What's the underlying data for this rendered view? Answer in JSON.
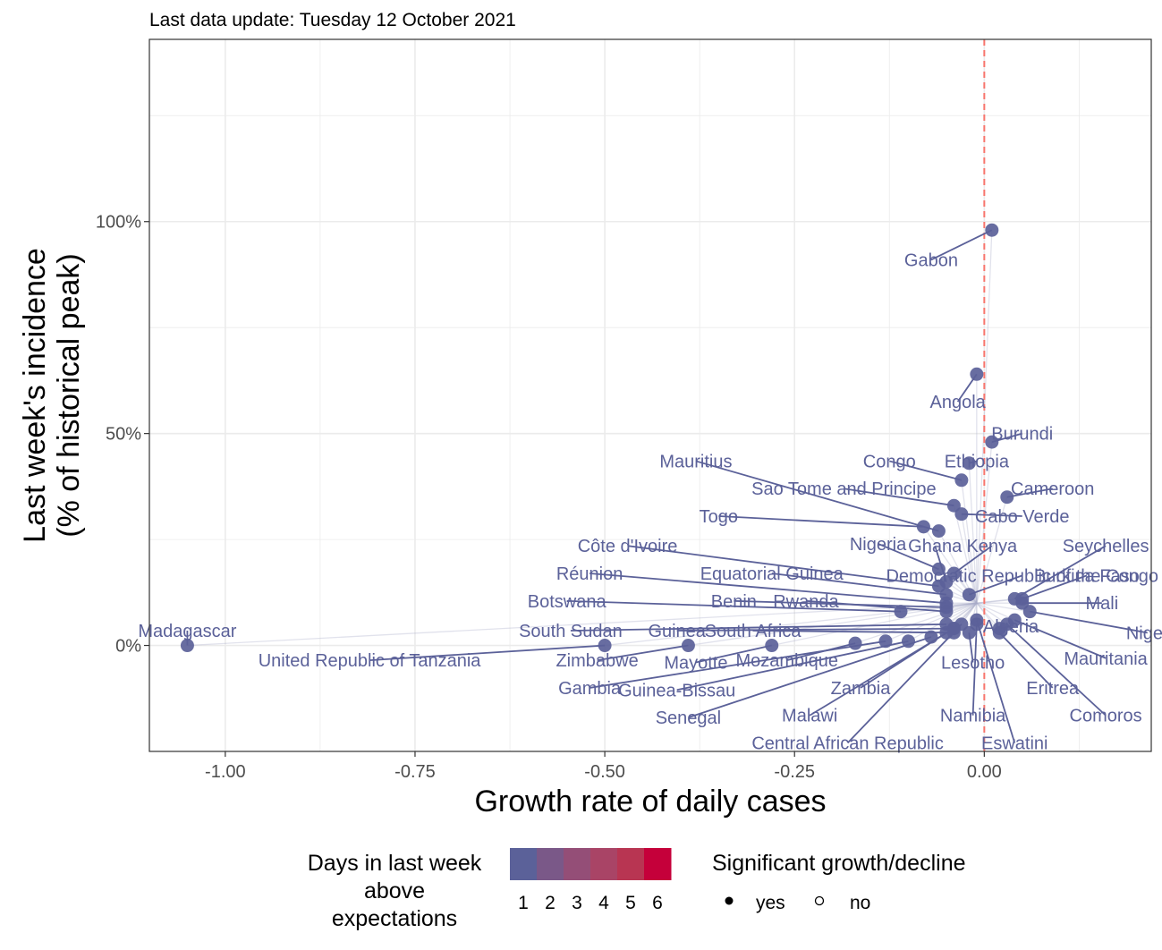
{
  "subtitle": "Last data update: Tuesday 12 October 2021",
  "chart_data": {
    "type": "scatter",
    "xlabel": "Growth rate of daily cases",
    "ylabel_lines": [
      "Last week's incidence",
      "(% of historical peak)"
    ],
    "xlim": [
      -1.1,
      0.22
    ],
    "ylim": [
      -0.25,
      1.43
    ],
    "x_ticks": [
      -1.0,
      -0.75,
      -0.5,
      -0.25,
      0.0
    ],
    "x_tick_labels": [
      "-1.00",
      "-0.75",
      "-0.50",
      "-0.25",
      "0.00"
    ],
    "y_ticks": [
      0,
      0.5,
      1.0
    ],
    "y_tick_labels": [
      "0%",
      "50%",
      "100%"
    ],
    "grid": true,
    "reference_line_x": 0.0,
    "colors": {
      "point": "#5b6199",
      "trail": "#a9acc9",
      "reference_line": "#f8766d",
      "grid": "#ebebeb",
      "panel_border": "#333333"
    },
    "points": [
      {
        "name": "Madagascar",
        "x": -1.05,
        "y": 0.0,
        "label_pos": [
          -1.05,
          0.035
        ]
      },
      {
        "name": "United Republic of Tanzania",
        "x": -0.5,
        "y": 0.0,
        "label_pos": [
          -0.81,
          -0.035
        ]
      },
      {
        "name": "Zimbabwe",
        "x": -0.39,
        "y": 0.0,
        "label_pos": [
          -0.51,
          -0.035
        ]
      },
      {
        "name": "Mayotte",
        "x": -0.28,
        "y": 0.0,
        "label_pos": [
          -0.38,
          -0.04
        ]
      },
      {
        "name": "Mozambique",
        "x": -0.17,
        "y": 0.005,
        "label_pos": [
          -0.26,
          -0.035
        ]
      },
      {
        "name": "Gambia",
        "x": -0.13,
        "y": 0.01,
        "label_pos": [
          -0.52,
          -0.1
        ]
      },
      {
        "name": "Guinea-Bissau",
        "x": -0.1,
        "y": 0.01,
        "label_pos": [
          -0.405,
          -0.105
        ]
      },
      {
        "name": "Senegal",
        "x": -0.07,
        "y": 0.02,
        "label_pos": [
          -0.39,
          -0.17
        ]
      },
      {
        "name": "Zambia",
        "x": -0.05,
        "y": 0.03,
        "label_pos": [
          -0.163,
          -0.1
        ]
      },
      {
        "name": "Malawi",
        "x": -0.04,
        "y": 0.04,
        "label_pos": [
          -0.23,
          -0.165
        ]
      },
      {
        "name": "Central African Republic",
        "x": -0.03,
        "y": 0.05,
        "label_pos": [
          -0.18,
          -0.23
        ]
      },
      {
        "name": "Lesotho",
        "x": -0.02,
        "y": 0.03,
        "label_pos": [
          -0.015,
          -0.04
        ]
      },
      {
        "name": "Namibia",
        "x": -0.01,
        "y": 0.05,
        "label_pos": [
          -0.015,
          -0.165
        ]
      },
      {
        "name": "Eswatini",
        "x": -0.01,
        "y": 0.06,
        "label_pos": [
          0.04,
          -0.23
        ]
      },
      {
        "name": "Eritrea",
        "x": 0.02,
        "y": 0.03,
        "label_pos": [
          0.09,
          -0.1
        ]
      },
      {
        "name": "Comoros",
        "x": 0.03,
        "y": 0.05,
        "label_pos": [
          0.16,
          -0.165
        ]
      },
      {
        "name": "Mauritania",
        "x": 0.04,
        "y": 0.06,
        "label_pos": [
          0.16,
          -0.03
        ]
      },
      {
        "name": "Algeria",
        "x": 0.02,
        "y": 0.04,
        "label_pos": [
          0.035,
          0.045
        ]
      },
      {
        "name": "Niger",
        "x": 0.06,
        "y": 0.08,
        "label_pos": [
          0.215,
          0.03
        ]
      },
      {
        "name": "Mali",
        "x": 0.05,
        "y": 0.1,
        "label_pos": [
          0.155,
          0.1
        ]
      },
      {
        "name": "Burkina Faso",
        "x": 0.05,
        "y": 0.11,
        "label_pos": [
          0.135,
          0.165
        ]
      },
      {
        "name": "Seychelles",
        "x": 0.04,
        "y": 0.11,
        "label_pos": [
          0.16,
          0.235
        ]
      },
      {
        "name": "Democratic Republic of the Congo",
        "x": -0.02,
        "y": 0.12,
        "label_pos": [
          0.05,
          0.165
        ]
      },
      {
        "name": "Kenya",
        "x": -0.04,
        "y": 0.17,
        "label_pos": [
          0.01,
          0.235
        ]
      },
      {
        "name": "Ghana",
        "x": -0.05,
        "y": 0.15,
        "label_pos": [
          -0.065,
          0.235
        ]
      },
      {
        "name": "Nigeria",
        "x": -0.06,
        "y": 0.18,
        "label_pos": [
          -0.14,
          0.24
        ]
      },
      {
        "name": "Equatorial Guinea",
        "x": -0.05,
        "y": 0.12,
        "label_pos": [
          -0.28,
          0.17
        ]
      },
      {
        "name": "Réunion",
        "x": -0.05,
        "y": 0.1,
        "label_pos": [
          -0.52,
          0.17
        ]
      },
      {
        "name": "Benin",
        "x": -0.05,
        "y": 0.09,
        "label_pos": [
          -0.33,
          0.105
        ]
      },
      {
        "name": "Rwanda",
        "x": -0.05,
        "y": 0.08,
        "label_pos": [
          -0.235,
          0.105
        ]
      },
      {
        "name": "Botswana",
        "x": -0.11,
        "y": 0.08,
        "label_pos": [
          -0.55,
          0.105
        ]
      },
      {
        "name": "South Sudan",
        "x": -0.05,
        "y": 0.05,
        "label_pos": [
          -0.545,
          0.035
        ]
      },
      {
        "name": "Guinea",
        "x": -0.04,
        "y": 0.04,
        "label_pos": [
          -0.405,
          0.035
        ]
      },
      {
        "name": "South Africa",
        "x": -0.04,
        "y": 0.03,
        "label_pos": [
          -0.305,
          0.035
        ]
      },
      {
        "name": "Côte d'Ivoire",
        "x": -0.06,
        "y": 0.14,
        "label_pos": [
          -0.47,
          0.235
        ]
      },
      {
        "name": "Togo",
        "x": -0.08,
        "y": 0.28,
        "label_pos": [
          -0.35,
          0.305
        ]
      },
      {
        "name": "Sao Tome and Principe",
        "x": -0.04,
        "y": 0.33,
        "label_pos": [
          -0.185,
          0.37
        ]
      },
      {
        "name": "Mauritius",
        "x": -0.06,
        "y": 0.27,
        "label_pos": [
          -0.38,
          0.435
        ]
      },
      {
        "name": "Congo",
        "x": -0.03,
        "y": 0.39,
        "label_pos": [
          -0.125,
          0.435
        ]
      },
      {
        "name": "Ethiopia",
        "x": -0.02,
        "y": 0.43,
        "label_pos": [
          -0.01,
          0.435
        ]
      },
      {
        "name": "Burundi",
        "x": 0.01,
        "y": 0.48,
        "label_pos": [
          0.05,
          0.5
        ]
      },
      {
        "name": "Cameroon",
        "x": 0.03,
        "y": 0.35,
        "label_pos": [
          0.09,
          0.37
        ]
      },
      {
        "name": "Cabo Verde",
        "x": -0.03,
        "y": 0.31,
        "label_pos": [
          0.05,
          0.305
        ]
      },
      {
        "name": "Angola",
        "x": -0.01,
        "y": 0.64,
        "label_pos": [
          -0.035,
          0.575
        ]
      },
      {
        "name": "Gabon",
        "x": 0.01,
        "y": 0.98,
        "label_pos": [
          -0.07,
          0.91
        ]
      }
    ],
    "legend": {
      "color_title_lines": [
        "Days in last week",
        "above",
        "expectations"
      ],
      "color_scale": [
        {
          "label": "1",
          "color": "#5b6199"
        },
        {
          "label": "2",
          "color": "#7a5888"
        },
        {
          "label": "3",
          "color": "#944e77"
        },
        {
          "label": "4",
          "color": "#a94466"
        },
        {
          "label": "5",
          "color": "#b83552"
        },
        {
          "label": "6",
          "color": "#c5003a"
        }
      ],
      "shape_title": "Significant growth/decline",
      "shape_items": [
        {
          "label": "yes",
          "filled": true
        },
        {
          "label": "no",
          "filled": false
        }
      ]
    }
  }
}
